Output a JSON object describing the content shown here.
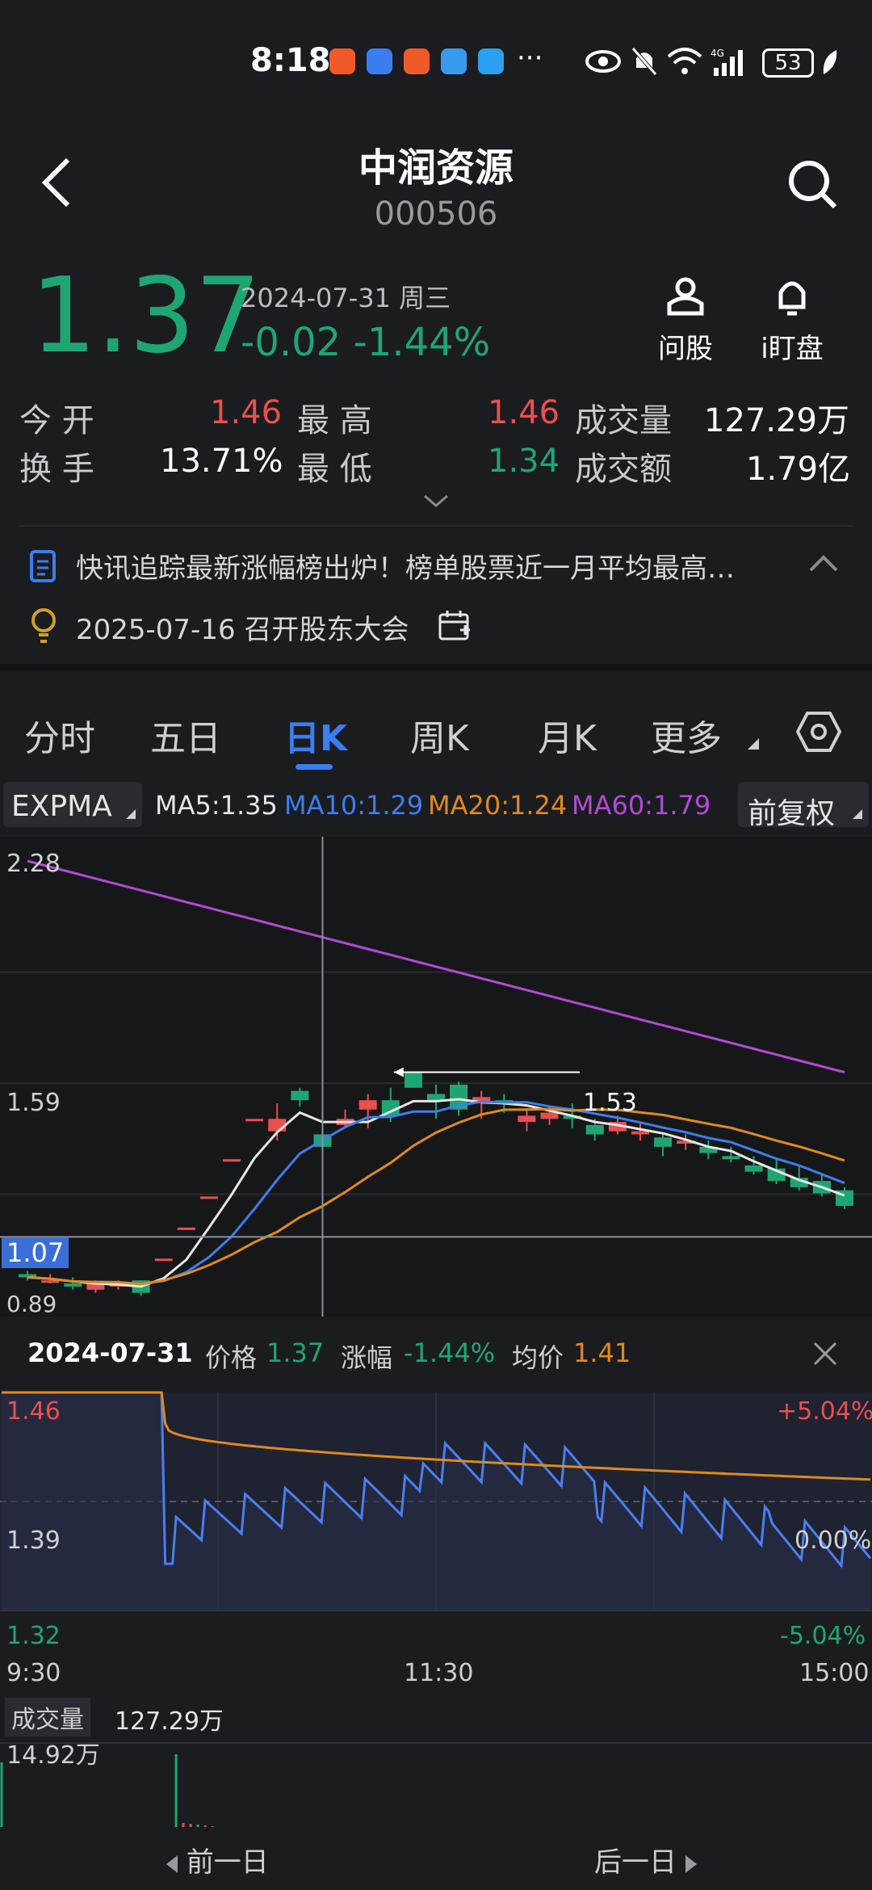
{
  "status_bar": {
    "time": "8:18",
    "more": "···",
    "battery": "53"
  },
  "header": {
    "title": "中润资源",
    "code": "000506"
  },
  "quote": {
    "price": "1.37",
    "date": "2024-07-31 周三",
    "change": "-0.02",
    "change_pct": "-1.44%",
    "ask_label": "问股",
    "watch_label": "i盯盘"
  },
  "stats": {
    "open_label": "今 开",
    "open": "1.46",
    "high_label": "最 高",
    "high": "1.46",
    "vol_label": "成交量",
    "vol": "127.29万",
    "turn_label": "换 手",
    "turn": "13.71%",
    "low_label": "最 低",
    "low": "1.34",
    "amt_label": "成交额",
    "amt": "1.79亿"
  },
  "news": {
    "item1": "快讯追踪最新涨幅榜出炉！榜单股票近一月平均最高…",
    "item2": "2025-07-16 召开股东大会"
  },
  "tabs": [
    "分时",
    "五日",
    "日K",
    "周K",
    "月K",
    "更多"
  ],
  "indicators": {
    "expma": "EXPMA",
    "ma5": "MA5:1.35",
    "ma10": "MA10:1.29",
    "ma20": "MA20:1.24",
    "ma60": "MA60:1.79",
    "adj": "前复权",
    "colors": {
      "ma5": "#e6e6e6",
      "ma10": "#3a7ef0",
      "ma20": "#e08a1a",
      "ma60": "#b24ad6"
    }
  },
  "kchart": {
    "y_top": "2.28",
    "y_mid": "1.59",
    "crosshair": "1.07",
    "y_bot": "0.89",
    "marker": "1.53"
  },
  "chart_data": [
    {
      "type": "candlestick",
      "title": "",
      "y_labels": [
        "2.28",
        "1.59",
        "0.89"
      ],
      "ma_series": [
        {
          "name": "MA5",
          "value": "1.35"
        },
        {
          "name": "MA10",
          "value": "1.29"
        },
        {
          "name": "MA20",
          "value": "1.24"
        },
        {
          "name": "MA60",
          "value": "1.79"
        }
      ],
      "candles_ohlc": [
        [
          0.95,
          0.96,
          0.93,
          0.94
        ],
        [
          0.93,
          0.95,
          0.92,
          0.93
        ],
        [
          0.92,
          0.94,
          0.9,
          0.91
        ],
        [
          0.9,
          0.93,
          0.89,
          0.92
        ],
        [
          0.91,
          0.93,
          0.9,
          0.92
        ],
        [
          0.93,
          0.93,
          0.88,
          0.89
        ],
        [
          1.0,
          1.0,
          1.0,
          1.0
        ],
        [
          1.1,
          1.1,
          1.1,
          1.1
        ],
        [
          1.2,
          1.2,
          1.2,
          1.2
        ],
        [
          1.32,
          1.32,
          1.32,
          1.32
        ],
        [
          1.45,
          1.45,
          1.45,
          1.45
        ],
        [
          1.41,
          1.5,
          1.38,
          1.45
        ],
        [
          1.54,
          1.55,
          1.49,
          1.51
        ],
        [
          1.4,
          1.46,
          1.36,
          1.36
        ],
        [
          1.43,
          1.48,
          1.42,
          1.45
        ],
        [
          1.48,
          1.53,
          1.42,
          1.51
        ],
        [
          1.51,
          1.55,
          1.44,
          1.46
        ],
        [
          1.6,
          1.6,
          1.55,
          1.55
        ],
        [
          1.53,
          1.56,
          1.45,
          1.51
        ],
        [
          1.56,
          1.57,
          1.46,
          1.48
        ],
        [
          1.5,
          1.54,
          1.45,
          1.52
        ],
        [
          1.51,
          1.53,
          1.47,
          1.5
        ],
        [
          1.44,
          1.48,
          1.41,
          1.46
        ],
        [
          1.45,
          1.49,
          1.43,
          1.47
        ],
        [
          1.46,
          1.5,
          1.42,
          1.45
        ],
        [
          1.43,
          1.45,
          1.38,
          1.4
        ],
        [
          1.41,
          1.46,
          1.4,
          1.44
        ],
        [
          1.4,
          1.44,
          1.38,
          1.41
        ],
        [
          1.39,
          1.4,
          1.33,
          1.36
        ],
        [
          1.37,
          1.4,
          1.35,
          1.38
        ],
        [
          1.36,
          1.38,
          1.32,
          1.34
        ],
        [
          1.33,
          1.36,
          1.31,
          1.32
        ],
        [
          1.3,
          1.33,
          1.27,
          1.28
        ],
        [
          1.29,
          1.32,
          1.24,
          1.25
        ],
        [
          1.26,
          1.3,
          1.22,
          1.23
        ],
        [
          1.25,
          1.27,
          1.2,
          1.21
        ],
        [
          1.22,
          1.23,
          1.16,
          1.17
        ]
      ]
    },
    {
      "type": "line",
      "title": "",
      "date": "2024-07-31",
      "x_labels": [
        "9:30",
        "11:30",
        "15:00"
      ],
      "y_labels": [
        "1.46",
        "1.39",
        "1.32"
      ],
      "pct_labels": [
        "+5.04%",
        "0.00%",
        "-5.04%"
      ],
      "price": "1.37",
      "pct": "-1.44%",
      "avg": "1.41"
    }
  ],
  "intraday": {
    "date": "2024-07-31",
    "price_label": "价格",
    "price": "1.37",
    "pct_label": "涨幅",
    "pct": "-1.44%",
    "avg_label": "均价",
    "avg": "1.41",
    "y_top": "1.46",
    "y_mid": "1.39",
    "y_bot": "1.32",
    "p_top": "+5.04%",
    "p_mid": "0.00%",
    "p_bot": "-5.04%",
    "x1": "9:30",
    "x2": "11:30",
    "x3": "15:00",
    "vol_tag": "成交量",
    "vol": "127.29万",
    "vol_max": "14.92万"
  },
  "bottom": {
    "prev": "前一日",
    "next": "后一日"
  }
}
